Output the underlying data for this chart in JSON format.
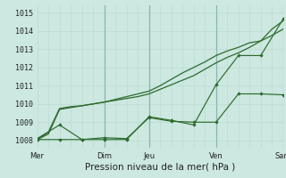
{
  "background_color": "#cce8e0",
  "grid_color_minor": "#b8d8d0",
  "grid_color_major": "#a0c8c0",
  "line_color": "#2d6a2d",
  "ylabel_ticks": [
    1008,
    1009,
    1010,
    1011,
    1012,
    1013,
    1014,
    1015
  ],
  "ylim": [
    1007.6,
    1015.4
  ],
  "xlabel": "Pression niveau de la mer( hPa )",
  "xlabel_fontsize": 7.5,
  "tick_fontsize": 6,
  "xtick_labels": [
    "Mer",
    "",
    "Dim",
    "Jeu",
    "",
    "Ven",
    "",
    "Sam"
  ],
  "xtick_positions": [
    0,
    2,
    3,
    5,
    7,
    8,
    10,
    11
  ],
  "vline_positions": [
    3,
    5,
    8,
    11
  ],
  "line1_x": [
    0,
    0.5,
    1,
    1.5,
    2,
    2.5,
    3,
    3.5,
    4,
    4.5,
    5,
    5.5,
    6,
    6.5,
    7,
    7.5,
    8,
    8.5,
    9,
    9.5,
    10,
    10.5,
    11
  ],
  "line1_y": [
    1008.05,
    1008.45,
    1009.75,
    1009.85,
    1009.9,
    1010.0,
    1010.1,
    1010.2,
    1010.3,
    1010.4,
    1010.55,
    1010.8,
    1011.05,
    1011.3,
    1011.55,
    1011.9,
    1012.25,
    1012.55,
    1012.8,
    1013.1,
    1013.45,
    1013.75,
    1014.1
  ],
  "line2_x": [
    0,
    0.5,
    1,
    1.5,
    2,
    2.5,
    3,
    3.5,
    4,
    4.5,
    5,
    5.5,
    6,
    6.5,
    7,
    7.5,
    8,
    8.5,
    9,
    9.5,
    10,
    10.5,
    11
  ],
  "line2_y": [
    1008.05,
    1008.35,
    1009.7,
    1009.8,
    1009.9,
    1010.0,
    1010.1,
    1010.25,
    1010.4,
    1010.55,
    1010.7,
    1011.0,
    1011.35,
    1011.7,
    1012.0,
    1012.3,
    1012.65,
    1012.9,
    1013.1,
    1013.35,
    1013.45,
    1014.1,
    1014.55
  ],
  "line3_x": [
    0,
    1,
    2,
    3,
    4,
    5,
    6,
    7,
    8,
    9,
    10,
    11
  ],
  "line3_y": [
    1008.1,
    1008.85,
    1008.05,
    1008.15,
    1008.1,
    1009.25,
    1009.05,
    1009.0,
    1009.0,
    1010.55,
    1010.55,
    1010.5
  ],
  "line4_x": [
    0,
    1,
    2,
    3,
    4,
    5,
    6,
    7,
    8,
    9,
    10,
    11
  ],
  "line4_y": [
    1008.05,
    1008.05,
    1008.05,
    1008.05,
    1008.05,
    1009.3,
    1009.1,
    1008.85,
    1011.05,
    1012.65,
    1012.65,
    1014.65
  ],
  "marker_size": 2.2
}
